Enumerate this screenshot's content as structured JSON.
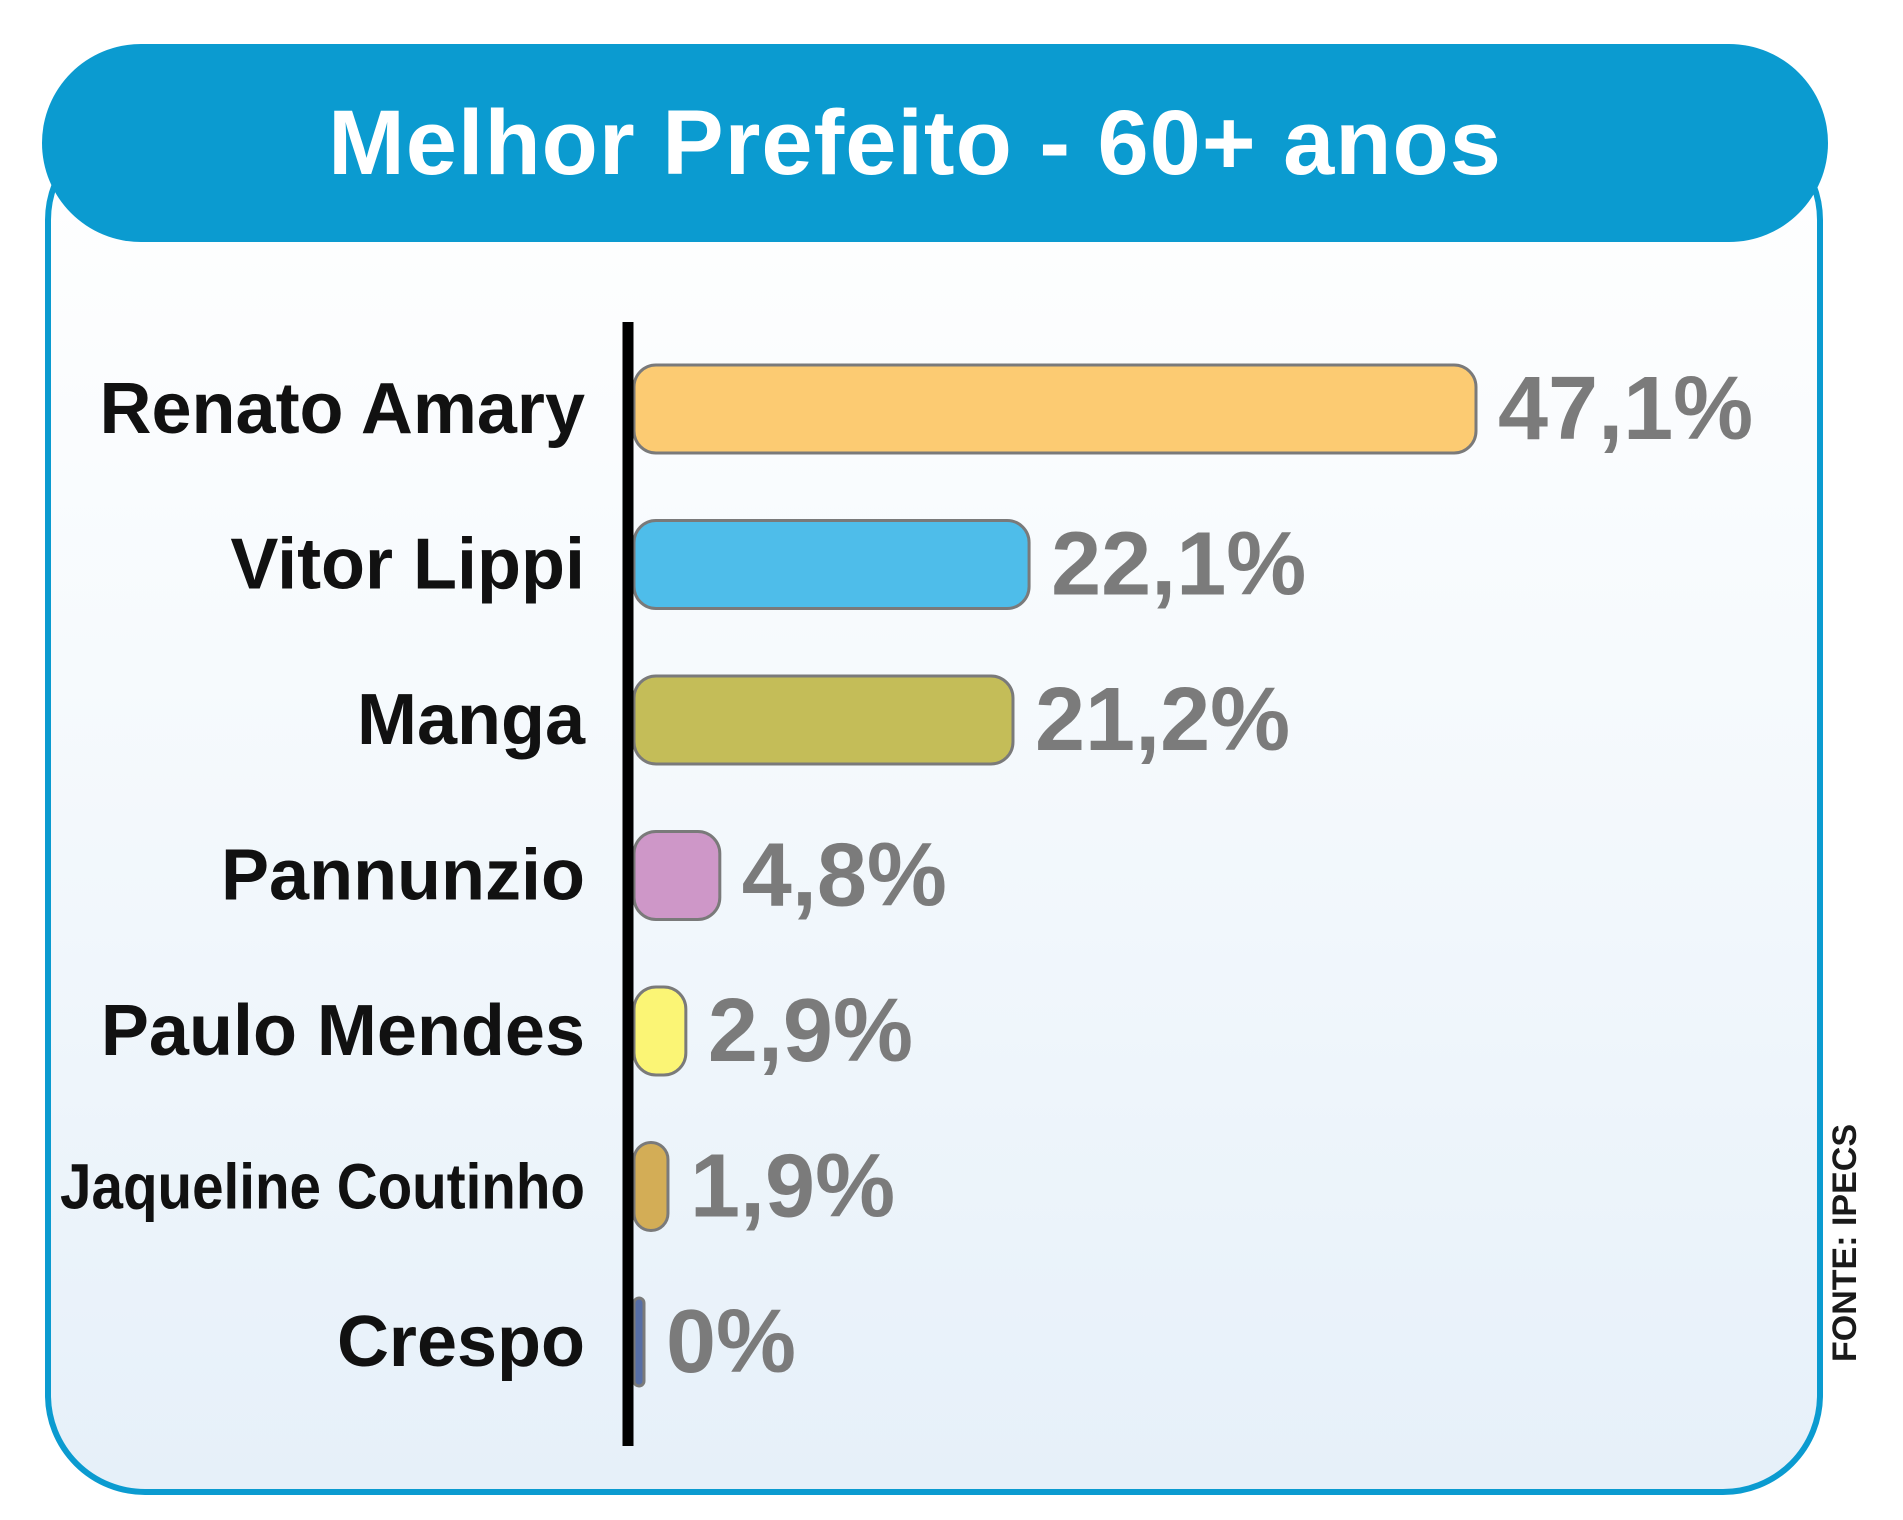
{
  "chart_data": {
    "type": "bar",
    "orientation": "horizontal",
    "title": "Melhor Prefeito - 60+ anos",
    "source": "FONTE: IPECS",
    "categories": [
      "Renato Amary",
      "Vitor Lippi",
      "Manga",
      "Pannunzio",
      "Paulo Mendes",
      "Jaqueline Coutinho",
      "Crespo"
    ],
    "values": [
      47.1,
      22.1,
      21.2,
      4.8,
      2.9,
      1.9,
      0
    ],
    "value_labels": [
      "47,1%",
      "22,1%",
      "21,2%",
      "4,8%",
      "2,9%",
      "1,9%",
      "0%"
    ],
    "colors": [
      "#fccb72",
      "#4ebdea",
      "#c4bd58",
      "#ce97c8",
      "#fbf575",
      "#d3ad56",
      "#566ea6"
    ],
    "xlim": [
      0,
      47.1
    ],
    "grid": false,
    "legend": "none"
  }
}
